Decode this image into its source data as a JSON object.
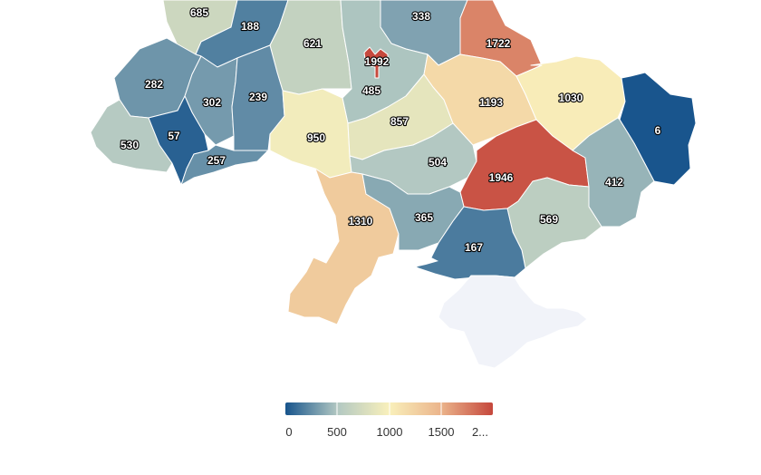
{
  "map": {
    "colors": {
      "low": "#17548c",
      "mid_low": "#b2c8c2",
      "mid": "#f9f0bb",
      "mid_high": "#ebb48b",
      "high": "#c5473c",
      "no_data": "#f1f3f9",
      "no_data_stroke": "#b8c4de",
      "water": "#ffffff"
    },
    "scale": {
      "min": 0,
      "max": 2000
    },
    "regions": [
      {
        "id": "volyn",
        "value": 685
      },
      {
        "id": "rivne",
        "value": 188
      },
      {
        "id": "zhytomyr",
        "value": 621
      },
      {
        "id": "kyiv-oblast",
        "value": 485
      },
      {
        "id": "kyiv-city",
        "value": 1992
      },
      {
        "id": "chernihiv",
        "value": 338
      },
      {
        "id": "sumy",
        "value": 1722
      },
      {
        "id": "lviv",
        "value": 282
      },
      {
        "id": "ternopil",
        "value": 302
      },
      {
        "id": "khmelnytskyi",
        "value": 239
      },
      {
        "id": "vinnytsia",
        "value": 950
      },
      {
        "id": "cherkasy",
        "value": 857
      },
      {
        "id": "poltava",
        "value": 1193
      },
      {
        "id": "kharkiv",
        "value": 1030
      },
      {
        "id": "luhansk",
        "value": 6
      },
      {
        "id": "zakarpattia",
        "value": 530
      },
      {
        "id": "ivano-frankivsk",
        "value": 57
      },
      {
        "id": "chernivtsi",
        "value": 257
      },
      {
        "id": "kirovohrad",
        "value": 504
      },
      {
        "id": "dnipropetrovsk",
        "value": 1946
      },
      {
        "id": "donetsk",
        "value": 412
      },
      {
        "id": "odesa",
        "value": 1310
      },
      {
        "id": "mykolaiv",
        "value": 365
      },
      {
        "id": "zaporizhzhia",
        "value": 569
      },
      {
        "id": "kherson",
        "value": 167
      },
      {
        "id": "crimea",
        "value": null
      }
    ]
  },
  "legend": {
    "ticks": [
      "0",
      "500",
      "1000",
      "1500",
      "2..."
    ]
  }
}
